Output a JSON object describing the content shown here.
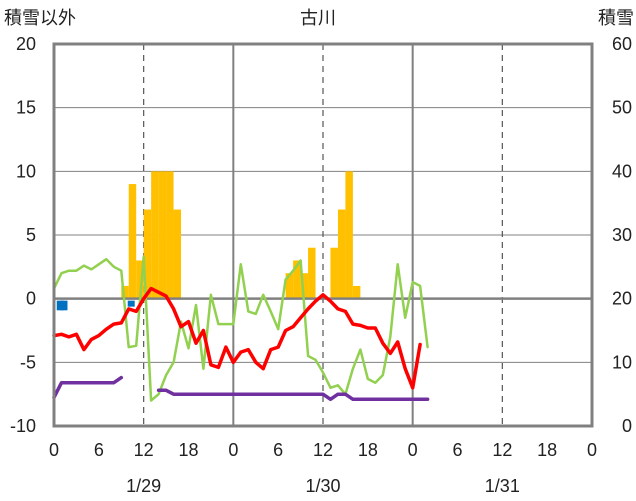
{
  "chart_data": {
    "type": "bar+line",
    "title": "古川",
    "left_axis_label": "積雪以外",
    "right_axis_label": "積雪",
    "left_ylim": [
      -10,
      20
    ],
    "right_ylim": [
      0,
      60
    ],
    "left_ticks": [
      "20",
      "15",
      "10",
      "5",
      "0",
      "-5",
      "-10"
    ],
    "right_ticks": [
      "60",
      "50",
      "40",
      "30",
      "20",
      "10",
      "0"
    ],
    "x_range_hours": [
      0,
      72
    ],
    "x_tick_labels": [
      "0",
      "6",
      "12",
      "18",
      "0",
      "6",
      "12",
      "18",
      "0",
      "6",
      "12",
      "18",
      "0"
    ],
    "date_labels": [
      "1/29",
      "1/30",
      "1/31"
    ],
    "grid": true,
    "colors": {
      "snowfall": "#FFC000",
      "temperature": "#FF0000",
      "humidity_like": "#92D050",
      "snow_depth": "#7030A0",
      "precip": "#0070C0",
      "axis": "#808080",
      "grid": "#808080"
    },
    "series": {
      "snowfall_bars": {
        "axis": "left",
        "points": [
          [
            9,
            1
          ],
          [
            10,
            9
          ],
          [
            11,
            3
          ],
          [
            12,
            7
          ],
          [
            13,
            10
          ],
          [
            14,
            10
          ],
          [
            15,
            10
          ],
          [
            16,
            7
          ],
          [
            31,
            2
          ],
          [
            32,
            3
          ],
          [
            33,
            2
          ],
          [
            34,
            4
          ],
          [
            37,
            4
          ],
          [
            38,
            7
          ],
          [
            39,
            10
          ],
          [
            40,
            1
          ]
        ]
      },
      "precip_bars": {
        "axis": "left",
        "points": [
          [
            0.5,
            -0.6
          ],
          [
            1,
            -0.6
          ],
          [
            10,
            -0.3
          ]
        ]
      },
      "temperature": {
        "axis": "left",
        "points": [
          [
            0,
            -2.9
          ],
          [
            1,
            -2.8
          ],
          [
            2,
            -3.0
          ],
          [
            3,
            -2.8
          ],
          [
            4,
            -4.0
          ],
          [
            5,
            -3.2
          ],
          [
            6,
            -2.9
          ],
          [
            7,
            -2.4
          ],
          [
            8,
            -2.0
          ],
          [
            9,
            -1.9
          ],
          [
            10,
            -0.8
          ],
          [
            11,
            -1.0
          ],
          [
            12,
            0.0
          ],
          [
            13,
            0.8
          ],
          [
            14,
            0.5
          ],
          [
            15,
            0.2
          ],
          [
            16,
            -0.8
          ],
          [
            17,
            -2.2
          ],
          [
            18,
            -1.8
          ],
          [
            19,
            -3.5
          ],
          [
            20,
            -2.5
          ],
          [
            21,
            -5.2
          ],
          [
            22,
            -5.4
          ],
          [
            23,
            -3.8
          ],
          [
            24,
            -5.0
          ],
          [
            25,
            -4.2
          ],
          [
            26,
            -4.0
          ],
          [
            27,
            -5.0
          ],
          [
            28,
            -5.5
          ],
          [
            29,
            -4.0
          ],
          [
            30,
            -3.8
          ],
          [
            31,
            -2.5
          ],
          [
            32,
            -2.2
          ],
          [
            33,
            -1.5
          ],
          [
            34,
            -0.8
          ],
          [
            35,
            -0.2
          ],
          [
            36,
            0.3
          ],
          [
            37,
            -0.2
          ],
          [
            38,
            -0.8
          ],
          [
            39,
            -1.0
          ],
          [
            40,
            -2.0
          ],
          [
            41,
            -2.1
          ],
          [
            42,
            -2.3
          ],
          [
            43,
            -2.3
          ],
          [
            44,
            -3.5
          ],
          [
            45,
            -4.3
          ],
          [
            46,
            -3.4
          ],
          [
            47,
            -5.5
          ],
          [
            48,
            -7.0
          ],
          [
            49,
            -3.6
          ]
        ]
      },
      "green_line": {
        "axis": "left",
        "points": [
          [
            0,
            0.8
          ],
          [
            1,
            2.0
          ],
          [
            2,
            2.2
          ],
          [
            3,
            2.2
          ],
          [
            4,
            2.6
          ],
          [
            5,
            2.3
          ],
          [
            6,
            2.7
          ],
          [
            7,
            3.1
          ],
          [
            8,
            2.5
          ],
          [
            9,
            2.2
          ],
          [
            10,
            -3.8
          ],
          [
            11,
            -3.7
          ],
          [
            12,
            3.3
          ],
          [
            13,
            -8.0
          ],
          [
            14,
            -7.5
          ],
          [
            15,
            -6.0
          ],
          [
            16,
            -5.0
          ],
          [
            17,
            -1.8
          ],
          [
            18,
            -3.9
          ],
          [
            19,
            -0.5
          ],
          [
            20,
            -5.5
          ],
          [
            21,
            0.3
          ],
          [
            22,
            -2.0
          ],
          [
            23,
            -2.0
          ],
          [
            24,
            -2.0
          ],
          [
            25,
            2.7
          ],
          [
            26,
            -1.0
          ],
          [
            27,
            -1.2
          ],
          [
            28,
            0.3
          ],
          [
            29,
            -1.0
          ],
          [
            30,
            -2.4
          ],
          [
            31,
            1.5
          ],
          [
            32,
            2.2
          ],
          [
            33,
            3.0
          ],
          [
            34,
            -4.5
          ],
          [
            35,
            -4.8
          ],
          [
            36,
            -5.8
          ],
          [
            37,
            -7.0
          ],
          [
            38,
            -6.8
          ],
          [
            39,
            -7.5
          ],
          [
            40,
            -5.5
          ],
          [
            41,
            -4.0
          ],
          [
            42,
            -6.3
          ],
          [
            43,
            -6.6
          ],
          [
            44,
            -6.0
          ],
          [
            45,
            -3.0
          ],
          [
            46,
            2.7
          ],
          [
            47,
            -1.5
          ],
          [
            48,
            1.3
          ],
          [
            49,
            1.0
          ],
          [
            50,
            -3.8
          ]
        ]
      },
      "snow_depth": {
        "axis": "right",
        "segments": [
          [
            [
              0,
              4.5
            ],
            [
              1,
              6.8
            ],
            [
              2,
              6.8
            ],
            [
              3,
              6.8
            ],
            [
              4,
              6.8
            ],
            [
              5,
              6.8
            ],
            [
              6,
              6.8
            ],
            [
              7,
              6.8
            ],
            [
              8,
              6.8
            ],
            [
              9,
              7.6
            ]
          ],
          [
            [
              14,
              5.6
            ],
            [
              15,
              5.6
            ],
            [
              16,
              5.0
            ],
            [
              17,
              5.0
            ],
            [
              18,
              5.0
            ],
            [
              19,
              5.0
            ],
            [
              20,
              5.0
            ],
            [
              21,
              5.0
            ],
            [
              22,
              5.0
            ],
            [
              23,
              5.0
            ],
            [
              24,
              5.0
            ],
            [
              25,
              5.0
            ],
            [
              26,
              5.0
            ],
            [
              27,
              5.0
            ],
            [
              28,
              5.0
            ],
            [
              29,
              5.0
            ],
            [
              30,
              5.0
            ],
            [
              31,
              5.0
            ],
            [
              32,
              5.0
            ],
            [
              33,
              5.0
            ],
            [
              34,
              5.0
            ],
            [
              35,
              5.0
            ],
            [
              36,
              5.0
            ],
            [
              37,
              4.2
            ],
            [
              38,
              5.0
            ],
            [
              39,
              5.0
            ],
            [
              40,
              4.2
            ],
            [
              41,
              4.2
            ],
            [
              42,
              4.2
            ],
            [
              43,
              4.2
            ],
            [
              44,
              4.2
            ],
            [
              45,
              4.2
            ],
            [
              46,
              4.2
            ],
            [
              47,
              4.2
            ],
            [
              48,
              4.2
            ],
            [
              49,
              4.2
            ],
            [
              50,
              4.2
            ]
          ]
        ]
      }
    }
  }
}
